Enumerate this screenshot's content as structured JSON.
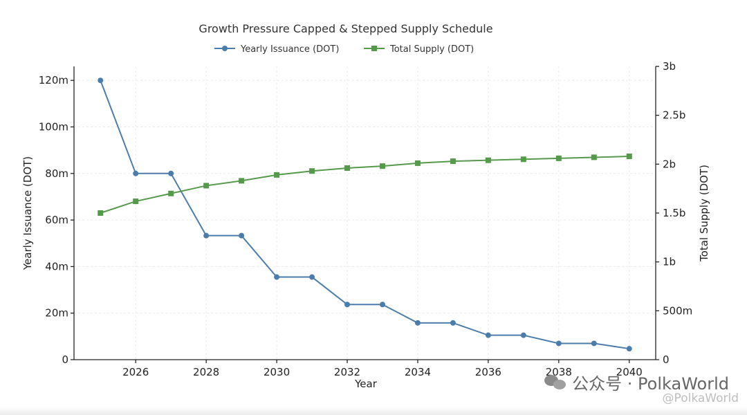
{
  "chart_data": {
    "type": "line",
    "title": "Growth Pressure Capped & Stepped Supply Schedule",
    "xlabel": "Year",
    "ylabel_left": "Yearly Issuance (DOT)",
    "ylabel_right": "Total Supply (DOT)",
    "x": [
      2025,
      2026,
      2027,
      2028,
      2029,
      2030,
      2031,
      2032,
      2033,
      2034,
      2035,
      2036,
      2037,
      2038,
      2039,
      2040
    ],
    "x_ticks": [
      "2026",
      "2028",
      "2030",
      "2032",
      "2034",
      "2036",
      "2038",
      "2040"
    ],
    "y_left_ticks": [
      "0",
      "20m",
      "40m",
      "60m",
      "80m",
      "100m",
      "120m"
    ],
    "y_right_ticks": [
      "0",
      "500m",
      "1b",
      "1.5b",
      "2b",
      "2.5b",
      "3b"
    ],
    "xlim": [
      2024.25,
      2040.75
    ],
    "ylim_left": [
      0,
      126000000
    ],
    "ylim_right": [
      0,
      3000000000
    ],
    "grid": true,
    "legend_position": "top-center",
    "series": [
      {
        "name": "Yearly Issuance (DOT)",
        "axis": "left",
        "color": "#4a7dab",
        "marker": "circle",
        "values": [
          120000000,
          80000000,
          80000000,
          53300000,
          53300000,
          35500000,
          35500000,
          23700000,
          23700000,
          15800000,
          15800000,
          10500000,
          10500000,
          7000000,
          7000000,
          4700000
        ]
      },
      {
        "name": "Total Supply (DOT)",
        "axis": "right",
        "color": "#55994a",
        "marker": "square",
        "values": [
          1500000000,
          1620000000,
          1700000000,
          1780000000,
          1830000000,
          1890000000,
          1930000000,
          1960000000,
          1980000000,
          2010000000,
          2030000000,
          2040000000,
          2050000000,
          2060000000,
          2070000000,
          2080000000
        ]
      }
    ]
  },
  "watermark": {
    "main": "公众号 · PolkaWorld",
    "sub": "@PolkaWorld",
    "icon": "wechat-icon"
  }
}
